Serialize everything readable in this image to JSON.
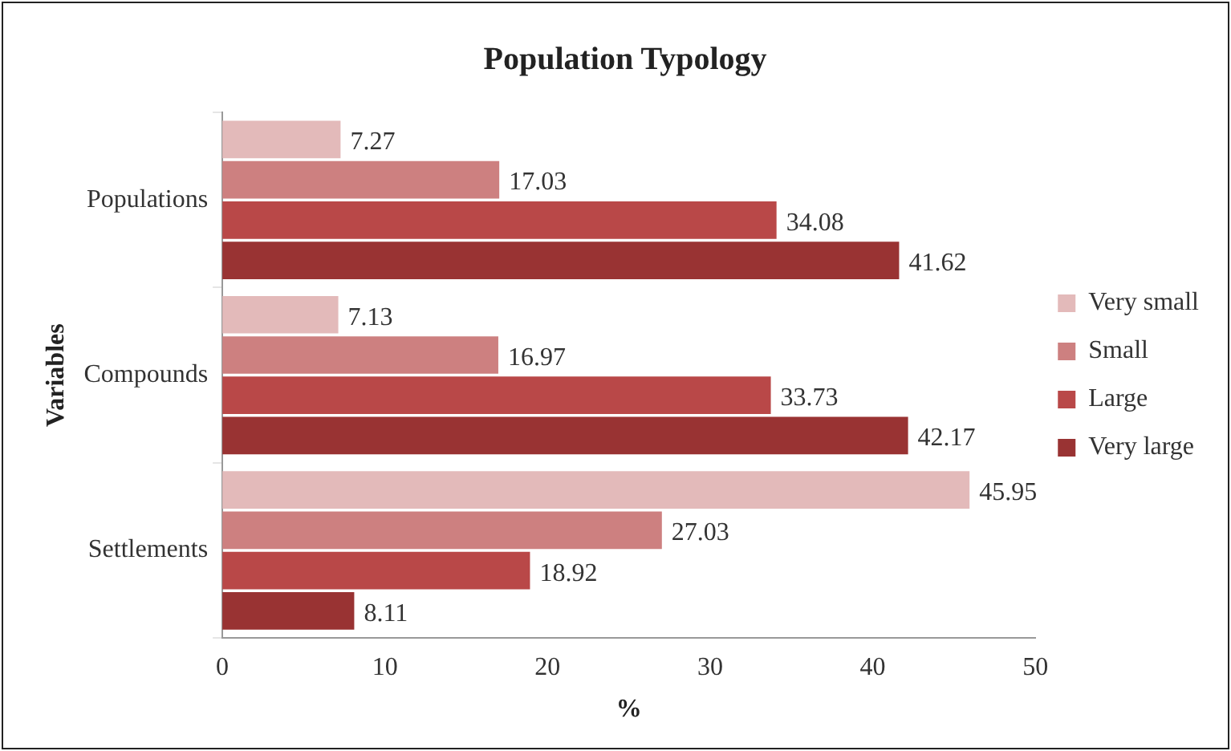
{
  "chart_data": {
    "type": "bar",
    "orientation": "horizontal",
    "title": "Population Typology",
    "xlabel": "%",
    "ylabel": "Variables",
    "categories": [
      "Populations",
      "Compounds",
      "Settlements"
    ],
    "series": [
      {
        "name": "Very small",
        "color": "#e3baba",
        "values": [
          7.27,
          7.13,
          45.95
        ]
      },
      {
        "name": "Small",
        "color": "#cd8080",
        "values": [
          17.03,
          16.97,
          27.03
        ]
      },
      {
        "name": "Large",
        "color": "#b94848",
        "values": [
          34.08,
          33.73,
          18.92
        ]
      },
      {
        "name": "Very large",
        "color": "#993333",
        "values": [
          41.62,
          42.17,
          8.11
        ]
      }
    ],
    "xlim": [
      0,
      50
    ],
    "xticks": [
      0,
      10,
      20,
      30,
      40,
      50
    ],
    "grid": false,
    "legend": "right",
    "data_labels": true
  }
}
